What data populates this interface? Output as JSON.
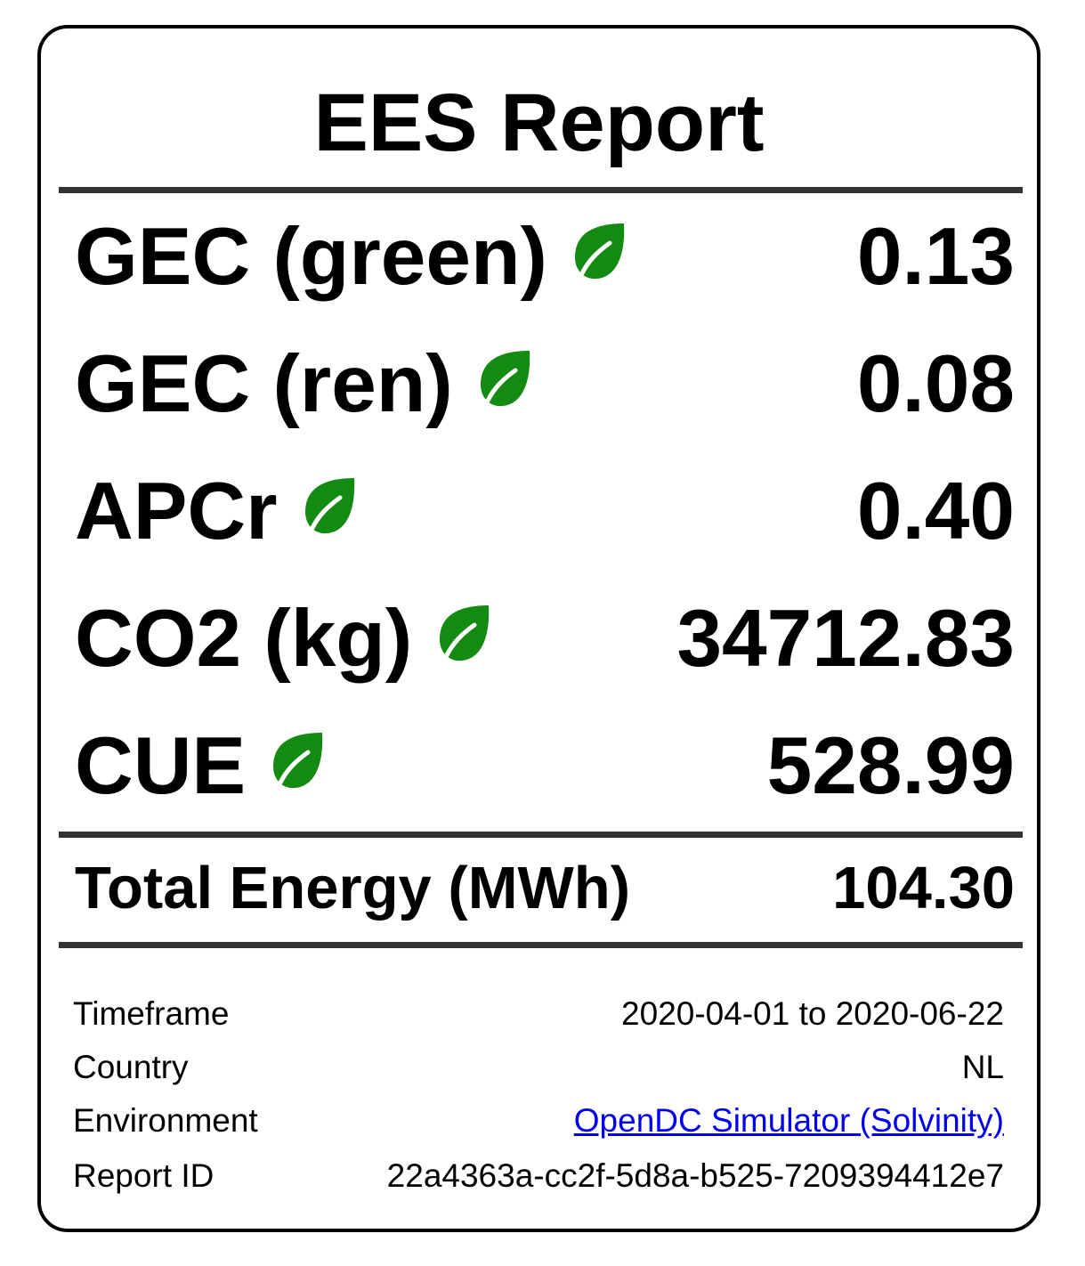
{
  "report": {
    "title": "EES Report",
    "metrics": [
      {
        "label": "GEC (green)",
        "value": "0.13",
        "icon": "leaf-icon"
      },
      {
        "label": "GEC (ren)",
        "value": "0.08",
        "icon": "leaf-icon"
      },
      {
        "label": "APCr",
        "value": "0.40",
        "icon": "leaf-icon"
      },
      {
        "label": "CO2 (kg)",
        "value": "34712.83",
        "icon": "leaf-icon"
      },
      {
        "label": "CUE",
        "value": "528.99",
        "icon": "leaf-icon"
      }
    ],
    "total": {
      "label": "Total Energy (MWh)",
      "value": "104.30"
    },
    "details": {
      "timeframe": {
        "label": "Timeframe",
        "value": "2020-04-01 to 2020-06-22"
      },
      "country": {
        "label": "Country",
        "value": "NL"
      },
      "environment": {
        "label": "Environment",
        "value": "OpenDC Simulator (Solvinity)"
      },
      "report_id": {
        "label": "Report ID",
        "value": "22a4363a-cc2f-5d8a-b525-7209394412e7"
      }
    }
  },
  "colors": {
    "leaf": "#138a12",
    "rule": "#333333",
    "link": "#0000ee"
  }
}
